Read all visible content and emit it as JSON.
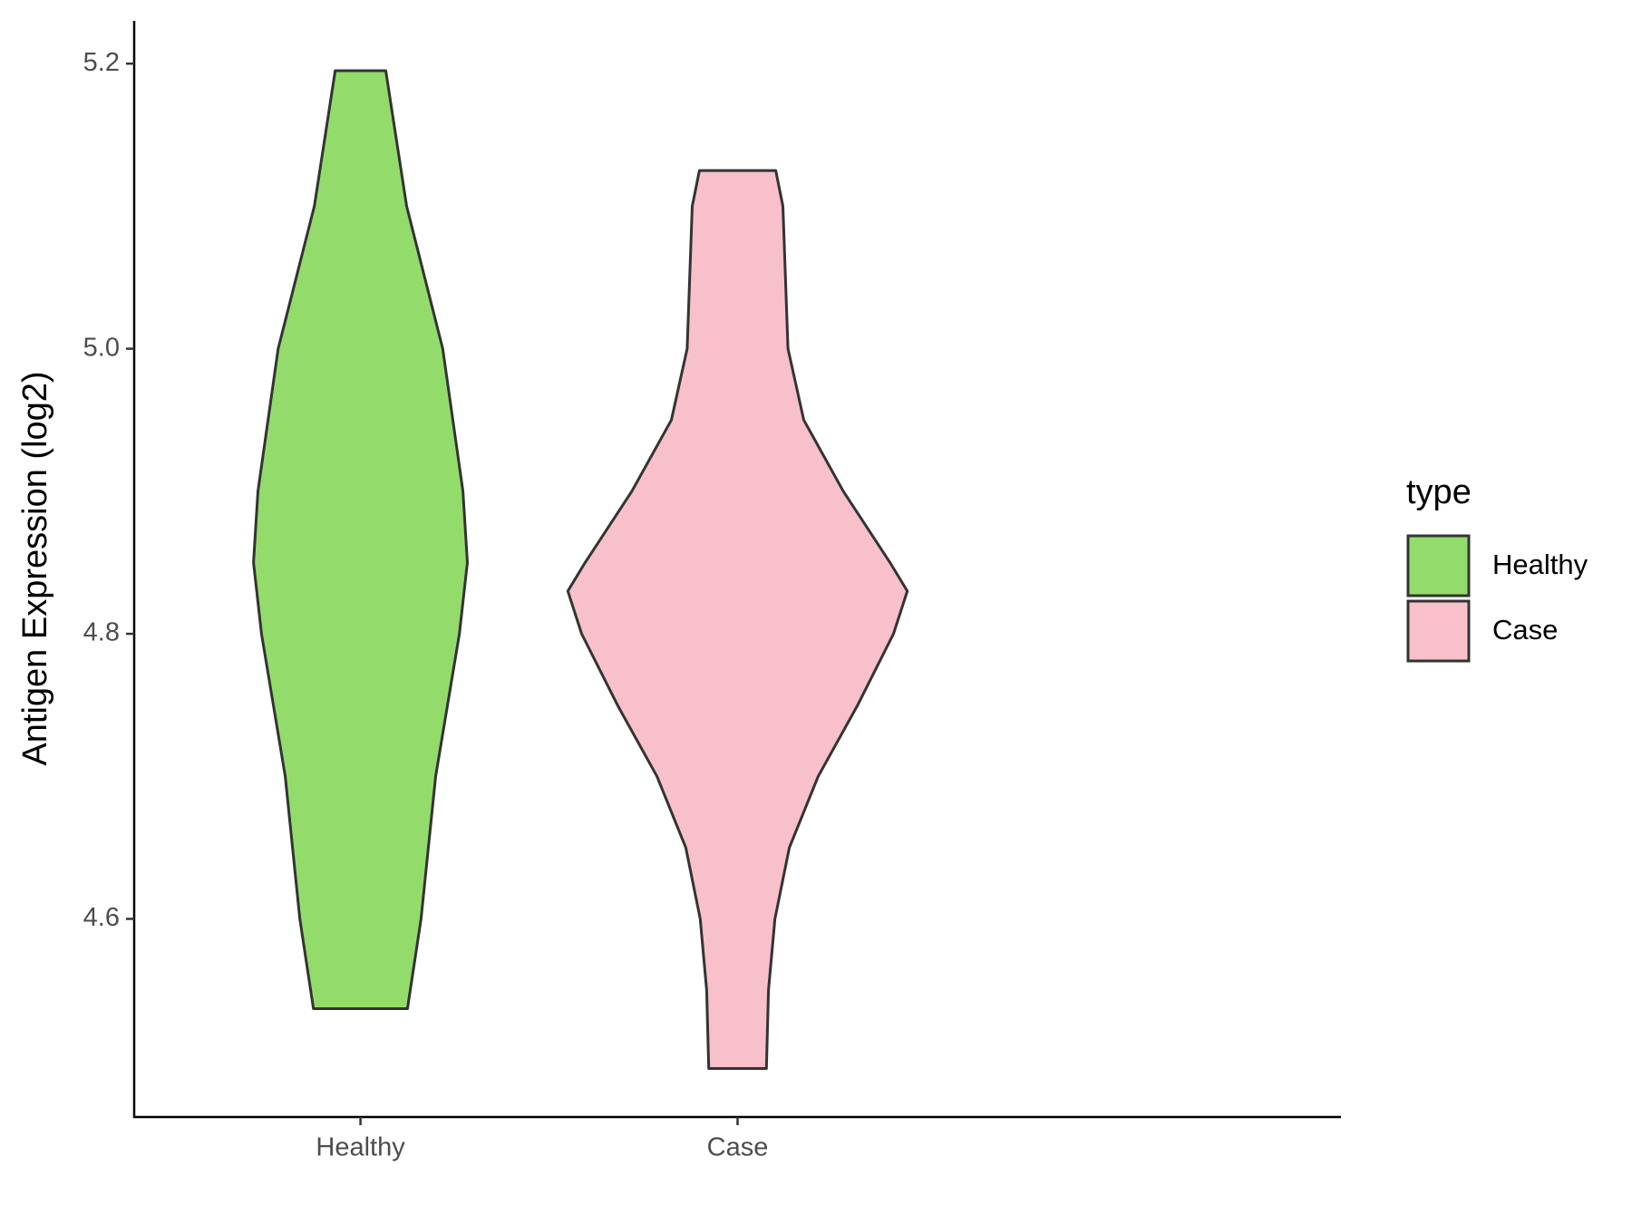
{
  "chart_data": {
    "type": "violin",
    "y_label": "Antigen Expression (log2)",
    "categories": [
      "Healthy",
      "Case"
    ],
    "legend_title": "type",
    "series": [
      {
        "name": "Healthy",
        "color": "#93dc6b",
        "y": [
          5.195,
          5.1,
          5.0,
          4.9,
          4.85,
          4.8,
          4.7,
          4.6,
          4.537
        ],
        "widths": [
          0.149,
          0.272,
          0.485,
          0.604,
          0.63,
          0.583,
          0.443,
          0.357,
          0.277
        ]
      },
      {
        "name": "Case",
        "color": "#f7c0cb",
        "y": [
          5.125,
          5.1,
          5.0,
          4.95,
          4.9,
          4.85,
          4.83,
          4.8,
          4.75,
          4.7,
          4.65,
          4.6,
          4.55,
          4.495
        ],
        "widths": [
          0.225,
          0.267,
          0.297,
          0.39,
          0.623,
          0.898,
          1.0,
          0.919,
          0.708,
          0.475,
          0.305,
          0.22,
          0.182,
          0.17
        ]
      }
    ],
    "ylim": [
      4.461,
      5.23
    ],
    "yticks": [
      {
        "value": 4.6,
        "label": "4.6"
      },
      {
        "value": 4.8,
        "label": "4.8"
      },
      {
        "value": 5.0,
        "label": "5.0"
      },
      {
        "value": 5.2,
        "label": "5.2"
      }
    ]
  }
}
